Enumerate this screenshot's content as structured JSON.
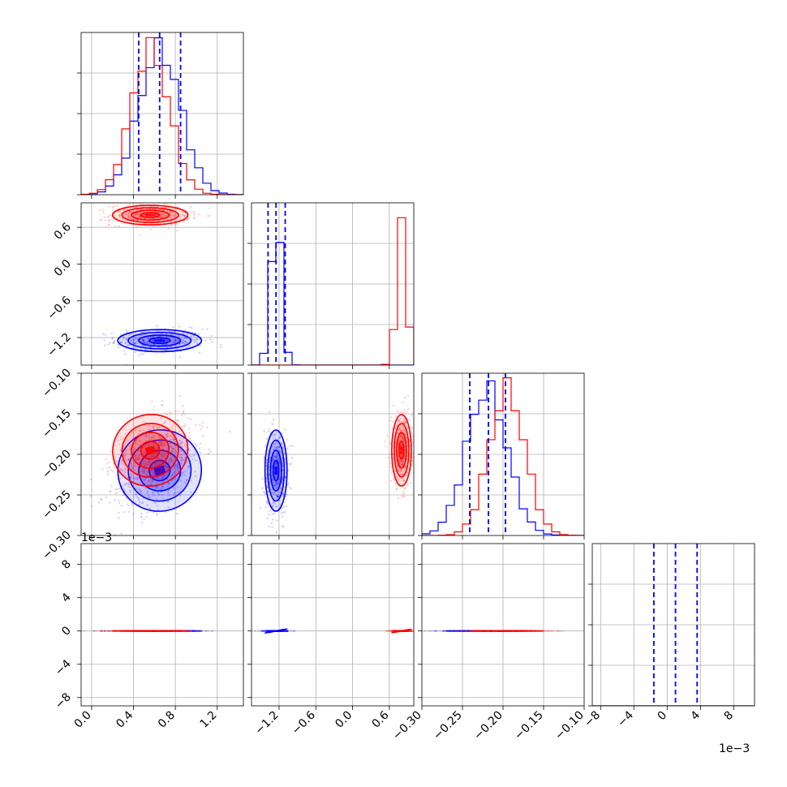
{
  "chart_data": {
    "type": "corner",
    "title": "",
    "parameters": [
      "",
      "",
      "",
      ""
    ],
    "grid": true,
    "colors": {
      "blue": "#0000ff",
      "red": "#ff0000"
    },
    "scale_labels": {
      "d_4_y": "1e−3",
      "d_3_x": "1e−3"
    },
    "axes": [
      {
        "range": [
          -0.1,
          1.45
        ],
        "ticks": [
          0.0,
          0.4,
          0.8,
          1.2
        ],
        "tick_labels": [
          "0.0",
          "0.4",
          "0.8",
          "1.2"
        ]
      },
      {
        "range": [
          -1.65,
          1.0
        ],
        "ticks": [
          -1.2,
          -0.6,
          0.0,
          0.6
        ],
        "tick_labels": [
          "−1.2",
          "−0.6",
          "0.0",
          "0.6"
        ]
      },
      {
        "range": [
          -0.3,
          -0.1
        ],
        "ticks": [
          -0.3,
          -0.25,
          -0.2,
          -0.15,
          -0.1
        ],
        "tick_labels": [
          "−0.30",
          "−0.25",
          "−0.20",
          "−0.15",
          "−0.10"
        ]
      },
      {
        "range": [
          -9,
          10.5
        ],
        "ticks": [
          -8,
          -4,
          0,
          4,
          8
        ],
        "tick_labels": [
          "−8",
          "−4",
          "0",
          "4",
          "8"
        ]
      }
    ],
    "series": [
      {
        "color": "#0000ff",
        "mean": [
          0.65,
          -1.25,
          -0.22,
          0.001
        ],
        "std": [
          0.2,
          0.09,
          0.025,
          0.003
        ],
        "quantiles": [
          [
            0.45,
            0.65,
            0.85
          ],
          [
            -1.38,
            -1.25,
            -1.1
          ],
          [
            -0.241,
            -0.218,
            -0.197
          ],
          [
            -1.6,
            1.0,
            3.6
          ]
        ]
      },
      {
        "color": "#ff0000",
        "mean": [
          0.56,
          0.8,
          -0.195,
          0.003
        ],
        "std": [
          0.18,
          0.08,
          0.022,
          0.002
        ]
      }
    ]
  }
}
